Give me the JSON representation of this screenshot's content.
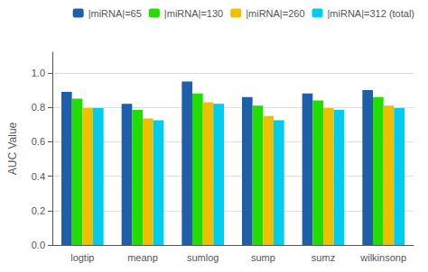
{
  "chart_data": {
    "type": "bar",
    "categories": [
      "logtip",
      "meanp",
      "sumlog",
      "sump",
      "sumz",
      "wilkinsonp"
    ],
    "series": [
      {
        "name": "|miRNA|=65",
        "color": "#1f5faa",
        "values": [
          0.89,
          0.82,
          0.95,
          0.86,
          0.88,
          0.9
        ]
      },
      {
        "name": "|miRNA|=130",
        "color": "#22dd00",
        "values": [
          0.85,
          0.785,
          0.88,
          0.81,
          0.84,
          0.86
        ]
      },
      {
        "name": "|miRNA|=260",
        "color": "#f0c000",
        "values": [
          0.795,
          0.735,
          0.83,
          0.75,
          0.795,
          0.81
        ]
      },
      {
        "name": "|miRNA|=312 (total)",
        "color": "#00ccee",
        "values": [
          0.795,
          0.725,
          0.82,
          0.725,
          0.785,
          0.795
        ]
      }
    ],
    "ylabel": "AUC Value",
    "ylim": [
      0,
      1.12
    ],
    "yticks": [
      {
        "value": 0,
        "label": "0.0"
      },
      0.2,
      0.4,
      0.6,
      0.8,
      {
        "value": 1.0,
        "label": "1.0"
      }
    ],
    "grid": true,
    "legend": "upper right"
  }
}
